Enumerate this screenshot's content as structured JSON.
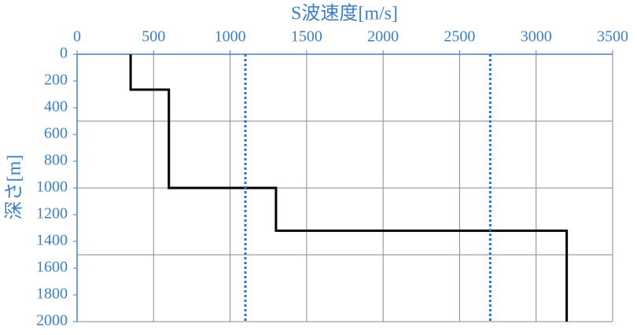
{
  "chart_data": {
    "type": "line",
    "xlabel": "S波速度[m/s]",
    "ylabel": "深さ[m]",
    "xlim": [
      0,
      3500
    ],
    "xticks": [
      0,
      500,
      1000,
      1500,
      2000,
      2500,
      3000,
      3500
    ],
    "ylim": [
      0,
      2000
    ],
    "y_inverted": true,
    "yticks": [
      0,
      200,
      400,
      600,
      800,
      1000,
      1200,
      1400,
      1600,
      1800,
      2000
    ],
    "xgrid": true,
    "ygrid": [
      500,
      1000,
      1500,
      2000
    ],
    "series": [
      {
        "color": "#000000",
        "dash": "solid",
        "x": [
          350,
          350,
          600,
          600,
          1300,
          1300,
          3200,
          3200
        ],
        "values": [
          0,
          265,
          265,
          1000,
          1000,
          1320,
          1320,
          2000
        ]
      },
      {
        "color": "#2f6fd0",
        "dash": "dotted",
        "x": [
          1100,
          1100
        ],
        "values": [
          0,
          2000
        ]
      },
      {
        "color": "#2f6fd0",
        "dash": "dotted",
        "x": [
          2700,
          2700
        ],
        "values": [
          0,
          2000
        ]
      }
    ]
  }
}
